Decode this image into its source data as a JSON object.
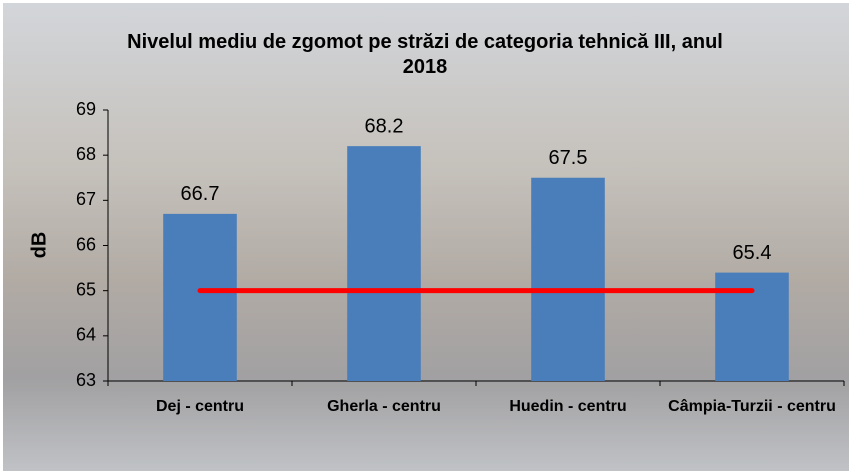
{
  "chart_data": {
    "type": "bar",
    "title": "Nivelul mediu de zgomot  pe străzi de categoria tehnică III, anul 2018",
    "y_label": "dB",
    "categories": [
      "Dej - centru",
      "Gherla - centru",
      "Huedin - centru",
      "Câmpia-Turzii - centru"
    ],
    "values": [
      66.7,
      68.2,
      67.5,
      65.4
    ],
    "color": "#4a7ebb",
    "reference_line": {
      "value": 65,
      "color": "#ff0000"
    },
    "ylim": [
      63,
      69
    ],
    "yticks": [
      63,
      64,
      65,
      66,
      67,
      68,
      69
    ]
  }
}
